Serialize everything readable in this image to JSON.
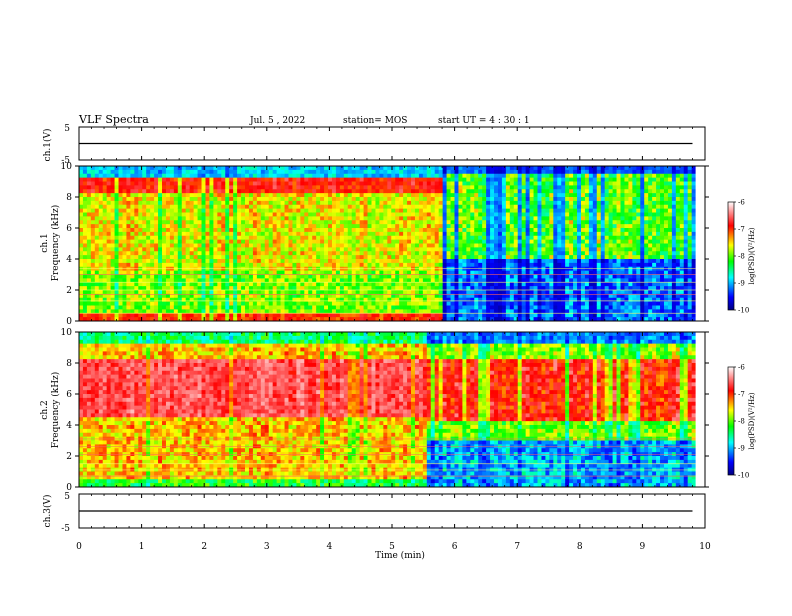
{
  "header": {
    "title": "VLF Spectra",
    "date": "Jul. 5 , 2022",
    "station": "station= MOS",
    "start_ut": "start UT = 4 : 30 : 1"
  },
  "chart_data": [
    {
      "type": "line",
      "panel": "ch1-waveform",
      "ylabel": "ch.1(V)",
      "ylim": [
        -5,
        5
      ],
      "yticks": [
        5,
        -5
      ],
      "x": [
        0,
        10
      ],
      "values": [
        0,
        0
      ],
      "note_series": "flat trace near 0 V"
    },
    {
      "type": "heatmap",
      "panel": "ch1-spectrogram",
      "ylabel": "ch.1",
      "ylabel2": "Frequency (kHz)",
      "ylim": [
        0,
        10
      ],
      "yticks": [
        0,
        2,
        4,
        6,
        8,
        10
      ],
      "xlim": [
        0,
        10
      ],
      "colorbar": {
        "label": "log(PSD)(V²/Hz)",
        "ticks": [
          -6,
          -7,
          -8,
          -9,
          -10
        ],
        "range": [
          -10,
          -6
        ]
      },
      "regimes": [
        {
          "t": [
            0,
            5.75
          ],
          "band_kHz": [
            0.3,
            8.9
          ],
          "level": "high"
        },
        {
          "t": [
            5.75,
            9.85
          ],
          "band_kHz": [
            4,
            9.5
          ],
          "level": "medium"
        },
        {
          "t": [
            5.75,
            9.85
          ],
          "band_kHz": [
            0.3,
            4
          ],
          "level": "low"
        }
      ]
    },
    {
      "type": "heatmap",
      "panel": "ch2-spectrogram",
      "ylabel": "ch.2",
      "ylabel2": "Frequency (kHz)",
      "ylim": [
        0,
        10
      ],
      "yticks": [
        0,
        2,
        4,
        6,
        8,
        10
      ],
      "xlim": [
        0,
        10
      ],
      "colorbar": {
        "label": "log(PSD)(V²/Hz)",
        "ticks": [
          -6,
          -7,
          -8,
          -9,
          -10
        ],
        "range": [
          -10,
          -6
        ]
      },
      "regimes": [
        {
          "t": [
            0,
            5.5
          ],
          "band_kHz": [
            1,
            9
          ],
          "level": "high"
        },
        {
          "t": [
            5.5,
            9.85
          ],
          "band_kHz": [
            4,
            8.8
          ],
          "level": "high"
        },
        {
          "t": [
            5.5,
            9.85
          ],
          "band_kHz": [
            0.3,
            4
          ],
          "level": "low"
        }
      ]
    },
    {
      "type": "line",
      "panel": "ch3-waveform",
      "ylabel": "ch.3(V)",
      "ylim": [
        -5,
        5
      ],
      "yticks": [
        5,
        -5
      ],
      "x": [
        0,
        10
      ],
      "values": [
        0,
        0
      ]
    }
  ],
  "xaxis": {
    "label": "Time (min)",
    "ticks": [
      0,
      1,
      2,
      3,
      4,
      5,
      6,
      7,
      8,
      9,
      10
    ],
    "range": [
      0,
      10
    ]
  },
  "colors": {
    "cmap": [
      "#000080",
      "#0000ff",
      "#00ffff",
      "#00ff00",
      "#ffff00",
      "#ff0000",
      "#ffffff"
    ]
  }
}
